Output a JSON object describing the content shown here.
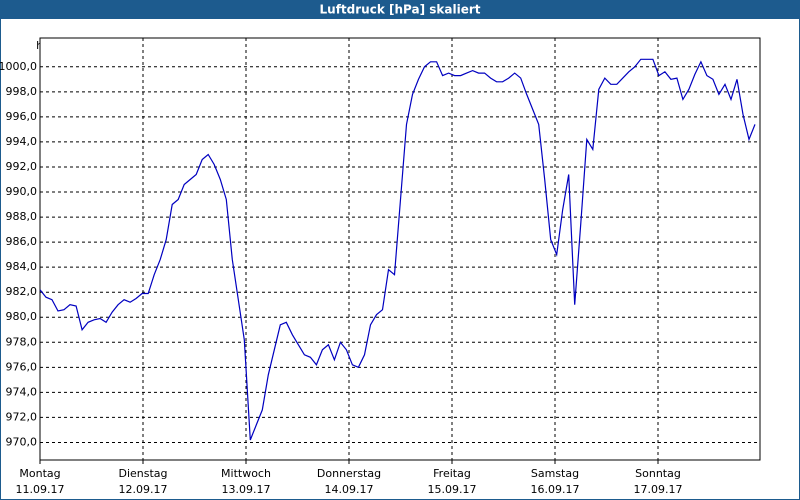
{
  "chart_data": {
    "type": "line",
    "title": "Luftdruck [hPa] skaliert",
    "y_label": "hPa",
    "xticks": [
      {
        "day": "Montag",
        "date": "11.09.17"
      },
      {
        "day": "Dienstag",
        "date": "12.09.17"
      },
      {
        "day": "Mittwoch",
        "date": "13.09.17"
      },
      {
        "day": "Donnerstag",
        "date": "14.09.17"
      },
      {
        "day": "Freitag",
        "date": "15.09.17"
      },
      {
        "day": "Samstag",
        "date": "16.09.17"
      },
      {
        "day": "Sonntag",
        "date": "17.09.17"
      }
    ],
    "ylim": [
      968.6,
      1002.3
    ],
    "yticks": [
      {
        "value": 970,
        "label": "970,0"
      },
      {
        "value": 972,
        "label": "972,0"
      },
      {
        "value": 974,
        "label": "974,0"
      },
      {
        "value": 976,
        "label": "976,0"
      },
      {
        "value": 978,
        "label": "978,0"
      },
      {
        "value": 980,
        "label": "980,0"
      },
      {
        "value": 982,
        "label": "982,0"
      },
      {
        "value": 984,
        "label": "984,0"
      },
      {
        "value": 986,
        "label": "986,0"
      },
      {
        "value": 988,
        "label": "988,0"
      },
      {
        "value": 990,
        "label": "990,0"
      },
      {
        "value": 992,
        "label": "992,0"
      },
      {
        "value": 994,
        "label": "994,0"
      },
      {
        "value": 996,
        "label": "996,0"
      },
      {
        "value": 998,
        "label": "998,0"
      },
      {
        "value": 1000,
        "label": "1000,0"
      }
    ],
    "grid": true,
    "color": "#0000c0",
    "values": [
      982.2,
      981.6,
      981.4,
      980.5,
      980.6,
      981.0,
      980.9,
      979.0,
      979.6,
      979.8,
      979.9,
      979.6,
      980.4,
      981.0,
      981.4,
      981.2,
      981.5,
      981.9,
      981.9,
      983.4,
      984.6,
      986.2,
      989.0,
      989.4,
      990.6,
      991.0,
      991.4,
      992.6,
      993.0,
      992.2,
      991.0,
      989.4,
      984.6,
      981.4,
      978.2,
      970.2,
      971.4,
      972.6,
      975.4,
      977.4,
      979.4,
      979.6,
      978.6,
      977.8,
      977.0,
      976.8,
      976.2,
      977.4,
      977.8,
      976.6,
      978.0,
      977.4,
      976.2,
      976.0,
      977.0,
      979.4,
      980.2,
      980.6,
      983.8,
      983.4,
      989.4,
      995.4,
      997.8,
      999.0,
      1000.0,
      1000.4,
      1000.4,
      999.3,
      999.5,
      999.3,
      999.3,
      999.5,
      999.7,
      999.5,
      999.5,
      999.1,
      998.8,
      998.8,
      999.1,
      999.5,
      999.1,
      997.8,
      996.6,
      995.4,
      991.0,
      986.2,
      985.0,
      988.6,
      991.4,
      981.0,
      987.5,
      994.2,
      993.4,
      998.2,
      999.1,
      998.6,
      998.6,
      999.1,
      999.6,
      1000.0,
      1000.6,
      1000.6,
      1000.6,
      999.3,
      999.6,
      999.0,
      999.1,
      997.4,
      998.2,
      999.4,
      1000.4,
      999.3,
      999.0,
      997.8,
      998.6,
      997.4,
      999.0,
      996.2,
      994.2,
      995.4
    ]
  }
}
